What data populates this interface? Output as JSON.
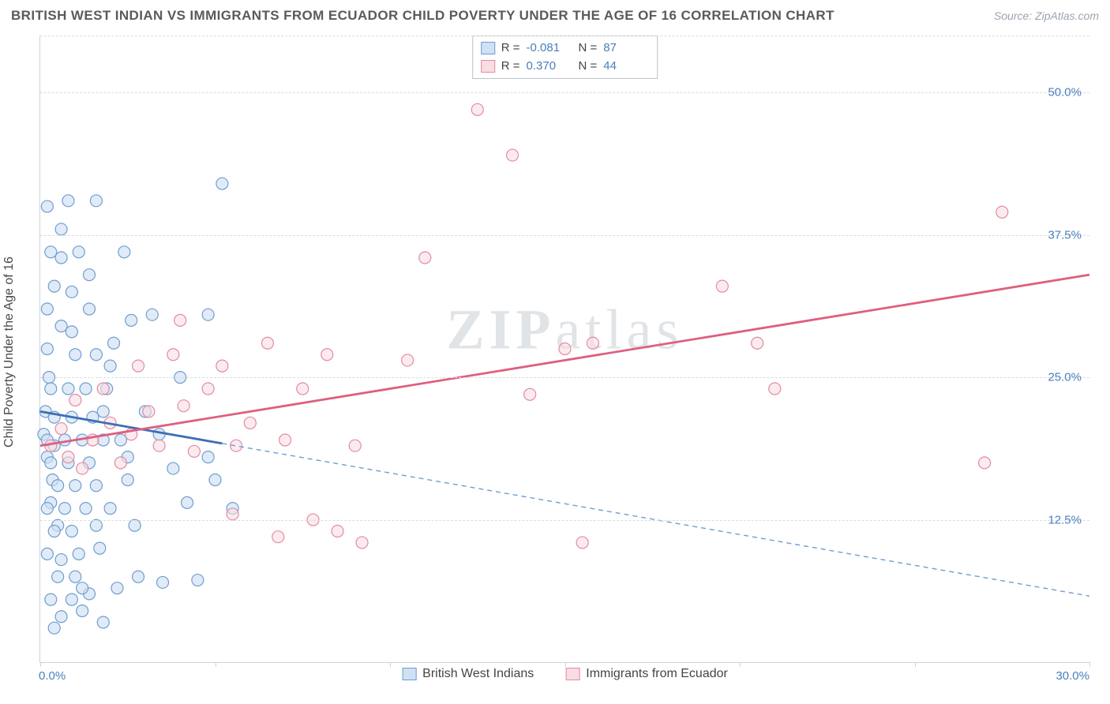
{
  "title": "BRITISH WEST INDIAN VS IMMIGRANTS FROM ECUADOR CHILD POVERTY UNDER THE AGE OF 16 CORRELATION CHART",
  "source_label": "Source: ZipAtlas.com",
  "watermark": "ZIPatlas",
  "y_axis_label": "Child Poverty Under the Age of 16",
  "chart": {
    "type": "scatter",
    "xlim": [
      0,
      30
    ],
    "ylim": [
      0,
      55
    ],
    "x_ticks": [
      0,
      5,
      10,
      15,
      20,
      25,
      30
    ],
    "x_tick_labels": {
      "0": "0.0%",
      "30": "30.0%"
    },
    "y_grid": [
      12.5,
      25.0,
      37.5,
      50.0
    ],
    "y_tick_labels": [
      "12.5%",
      "25.0%",
      "37.5%",
      "50.0%"
    ],
    "grid_color": "#d9dde1",
    "axis_color": "#cfd4d9",
    "background_color": "#ffffff",
    "label_color": "#4a7ebb",
    "label_fontsize": 15,
    "marker_radius": 7.5,
    "marker_stroke_width": 1.2,
    "trend_line_width": 2.8,
    "series": [
      {
        "name": "British West Indians",
        "fill": "#cfe1f3",
        "stroke": "#6f9dd1",
        "fill_opacity": 0.65,
        "r_value": "-0.081",
        "n_value": "87",
        "trend": {
          "solid": {
            "x1": 0,
            "y1": 22.0,
            "x2": 5.2,
            "y2": 19.2,
            "color": "#3b6fb5"
          },
          "dashed": {
            "x1": 5.2,
            "y1": 19.2,
            "x2": 30,
            "y2": 5.8,
            "color": "#6f9dd1",
            "dash": "6,5"
          }
        },
        "points": [
          [
            0.1,
            20
          ],
          [
            0.2,
            18
          ],
          [
            0.15,
            22
          ],
          [
            0.3,
            14
          ],
          [
            0.25,
            25
          ],
          [
            0.4,
            19
          ],
          [
            0.35,
            16
          ],
          [
            0.5,
            12
          ],
          [
            0.2,
            40
          ],
          [
            0.8,
            40.5
          ],
          [
            1.6,
            40.5
          ],
          [
            0.3,
            36
          ],
          [
            0.6,
            35.5
          ],
          [
            1.1,
            36
          ],
          [
            0.4,
            33
          ],
          [
            0.9,
            32.5
          ],
          [
            0.2,
            31
          ],
          [
            1.4,
            31
          ],
          [
            0.6,
            29.5
          ],
          [
            0.2,
            27.5
          ],
          [
            1.0,
            27
          ],
          [
            1.6,
            27
          ],
          [
            2.1,
            28
          ],
          [
            0.3,
            24
          ],
          [
            0.8,
            24
          ],
          [
            1.3,
            24
          ],
          [
            1.9,
            24
          ],
          [
            0.4,
            21.5
          ],
          [
            0.9,
            21.5
          ],
          [
            1.5,
            21.5
          ],
          [
            0.2,
            19.5
          ],
          [
            0.7,
            19.5
          ],
          [
            1.2,
            19.5
          ],
          [
            1.8,
            19.5
          ],
          [
            2.3,
            19.5
          ],
          [
            0.3,
            17.5
          ],
          [
            0.8,
            17.5
          ],
          [
            1.4,
            17.5
          ],
          [
            0.5,
            15.5
          ],
          [
            1.0,
            15.5
          ],
          [
            1.6,
            15.5
          ],
          [
            2.5,
            16
          ],
          [
            0.2,
            13.5
          ],
          [
            0.7,
            13.5
          ],
          [
            1.3,
            13.5
          ],
          [
            2.0,
            13.5
          ],
          [
            0.4,
            11.5
          ],
          [
            0.9,
            11.5
          ],
          [
            1.6,
            12
          ],
          [
            0.2,
            9.5
          ],
          [
            0.6,
            9.0
          ],
          [
            1.1,
            9.5
          ],
          [
            1.7,
            10
          ],
          [
            0.5,
            7.5
          ],
          [
            1.0,
            7.5
          ],
          [
            0.3,
            5.5
          ],
          [
            0.9,
            5.5
          ],
          [
            1.4,
            6.0
          ],
          [
            0.6,
            4.0
          ],
          [
            1.2,
            4.5
          ],
          [
            1.8,
            3.5
          ],
          [
            0.4,
            3.0
          ],
          [
            2.2,
            6.5
          ],
          [
            2.8,
            7.5
          ],
          [
            3.5,
            7.0
          ],
          [
            4.5,
            7.2
          ],
          [
            2.6,
            30
          ],
          [
            3.2,
            30.5
          ],
          [
            2.0,
            26
          ],
          [
            3.0,
            22
          ],
          [
            2.5,
            18
          ],
          [
            3.8,
            17
          ],
          [
            4.2,
            14
          ],
          [
            5.0,
            16
          ],
          [
            5.5,
            13.5
          ],
          [
            4.8,
            30.5
          ],
          [
            5.2,
            42
          ],
          [
            2.4,
            36
          ],
          [
            0.6,
            38
          ],
          [
            1.4,
            34
          ],
          [
            0.9,
            29
          ],
          [
            1.8,
            22
          ],
          [
            2.7,
            12
          ],
          [
            3.4,
            20
          ],
          [
            4.0,
            25
          ],
          [
            4.8,
            18
          ],
          [
            1.2,
            6.5
          ]
        ]
      },
      {
        "name": "Immigrants from Ecuador",
        "fill": "#f8dde3",
        "stroke": "#e28ba1",
        "fill_opacity": 0.6,
        "r_value": "0.370",
        "n_value": "44",
        "trend": {
          "solid": {
            "x1": 0,
            "y1": 19.0,
            "x2": 30,
            "y2": 34.0,
            "color": "#de5f7f"
          },
          "dashed": null
        },
        "points": [
          [
            0.3,
            19
          ],
          [
            0.6,
            20.5
          ],
          [
            0.8,
            18
          ],
          [
            1.0,
            23
          ],
          [
            1.2,
            17
          ],
          [
            1.5,
            19.5
          ],
          [
            1.8,
            24
          ],
          [
            2.0,
            21
          ],
          [
            2.3,
            17.5
          ],
          [
            2.6,
            20
          ],
          [
            2.8,
            26
          ],
          [
            3.1,
            22
          ],
          [
            3.4,
            19
          ],
          [
            3.8,
            27
          ],
          [
            4.1,
            22.5
          ],
          [
            4.4,
            18.5
          ],
          [
            4.8,
            24
          ],
          [
            5.2,
            26
          ],
          [
            5.6,
            19
          ],
          [
            6.0,
            21
          ],
          [
            6.5,
            28
          ],
          [
            7.0,
            19.5
          ],
          [
            7.5,
            24
          ],
          [
            8.2,
            27
          ],
          [
            8.5,
            11.5
          ],
          [
            9.0,
            19
          ],
          [
            9.2,
            10.5
          ],
          [
            6.8,
            11
          ],
          [
            7.8,
            12.5
          ],
          [
            5.5,
            13
          ],
          [
            10.5,
            26.5
          ],
          [
            11.0,
            35.5
          ],
          [
            12.5,
            48.5
          ],
          [
            13.5,
            44.5
          ],
          [
            14.0,
            23.5
          ],
          [
            15.0,
            27.5
          ],
          [
            15.5,
            10.5
          ],
          [
            15.8,
            28
          ],
          [
            19.5,
            33
          ],
          [
            20.5,
            28
          ],
          [
            21.0,
            24
          ],
          [
            27.5,
            39.5
          ],
          [
            27.0,
            17.5
          ],
          [
            4.0,
            30
          ]
        ]
      }
    ]
  },
  "legend_top": {
    "rows": [
      {
        "swatch_fill": "#cfe1f3",
        "swatch_stroke": "#6f9dd1",
        "r_label": "R =",
        "r": "-0.081",
        "n_label": "N =",
        "n": "87"
      },
      {
        "swatch_fill": "#f8dde3",
        "swatch_stroke": "#e28ba1",
        "r_label": "R =",
        "r": " 0.370",
        "n_label": "N =",
        "n": "44"
      }
    ]
  },
  "series_legend": [
    {
      "swatch_fill": "#cfe1f3",
      "swatch_stroke": "#6f9dd1",
      "label": "British West Indians"
    },
    {
      "swatch_fill": "#f8dde3",
      "swatch_stroke": "#e28ba1",
      "label": "Immigrants from Ecuador"
    }
  ]
}
